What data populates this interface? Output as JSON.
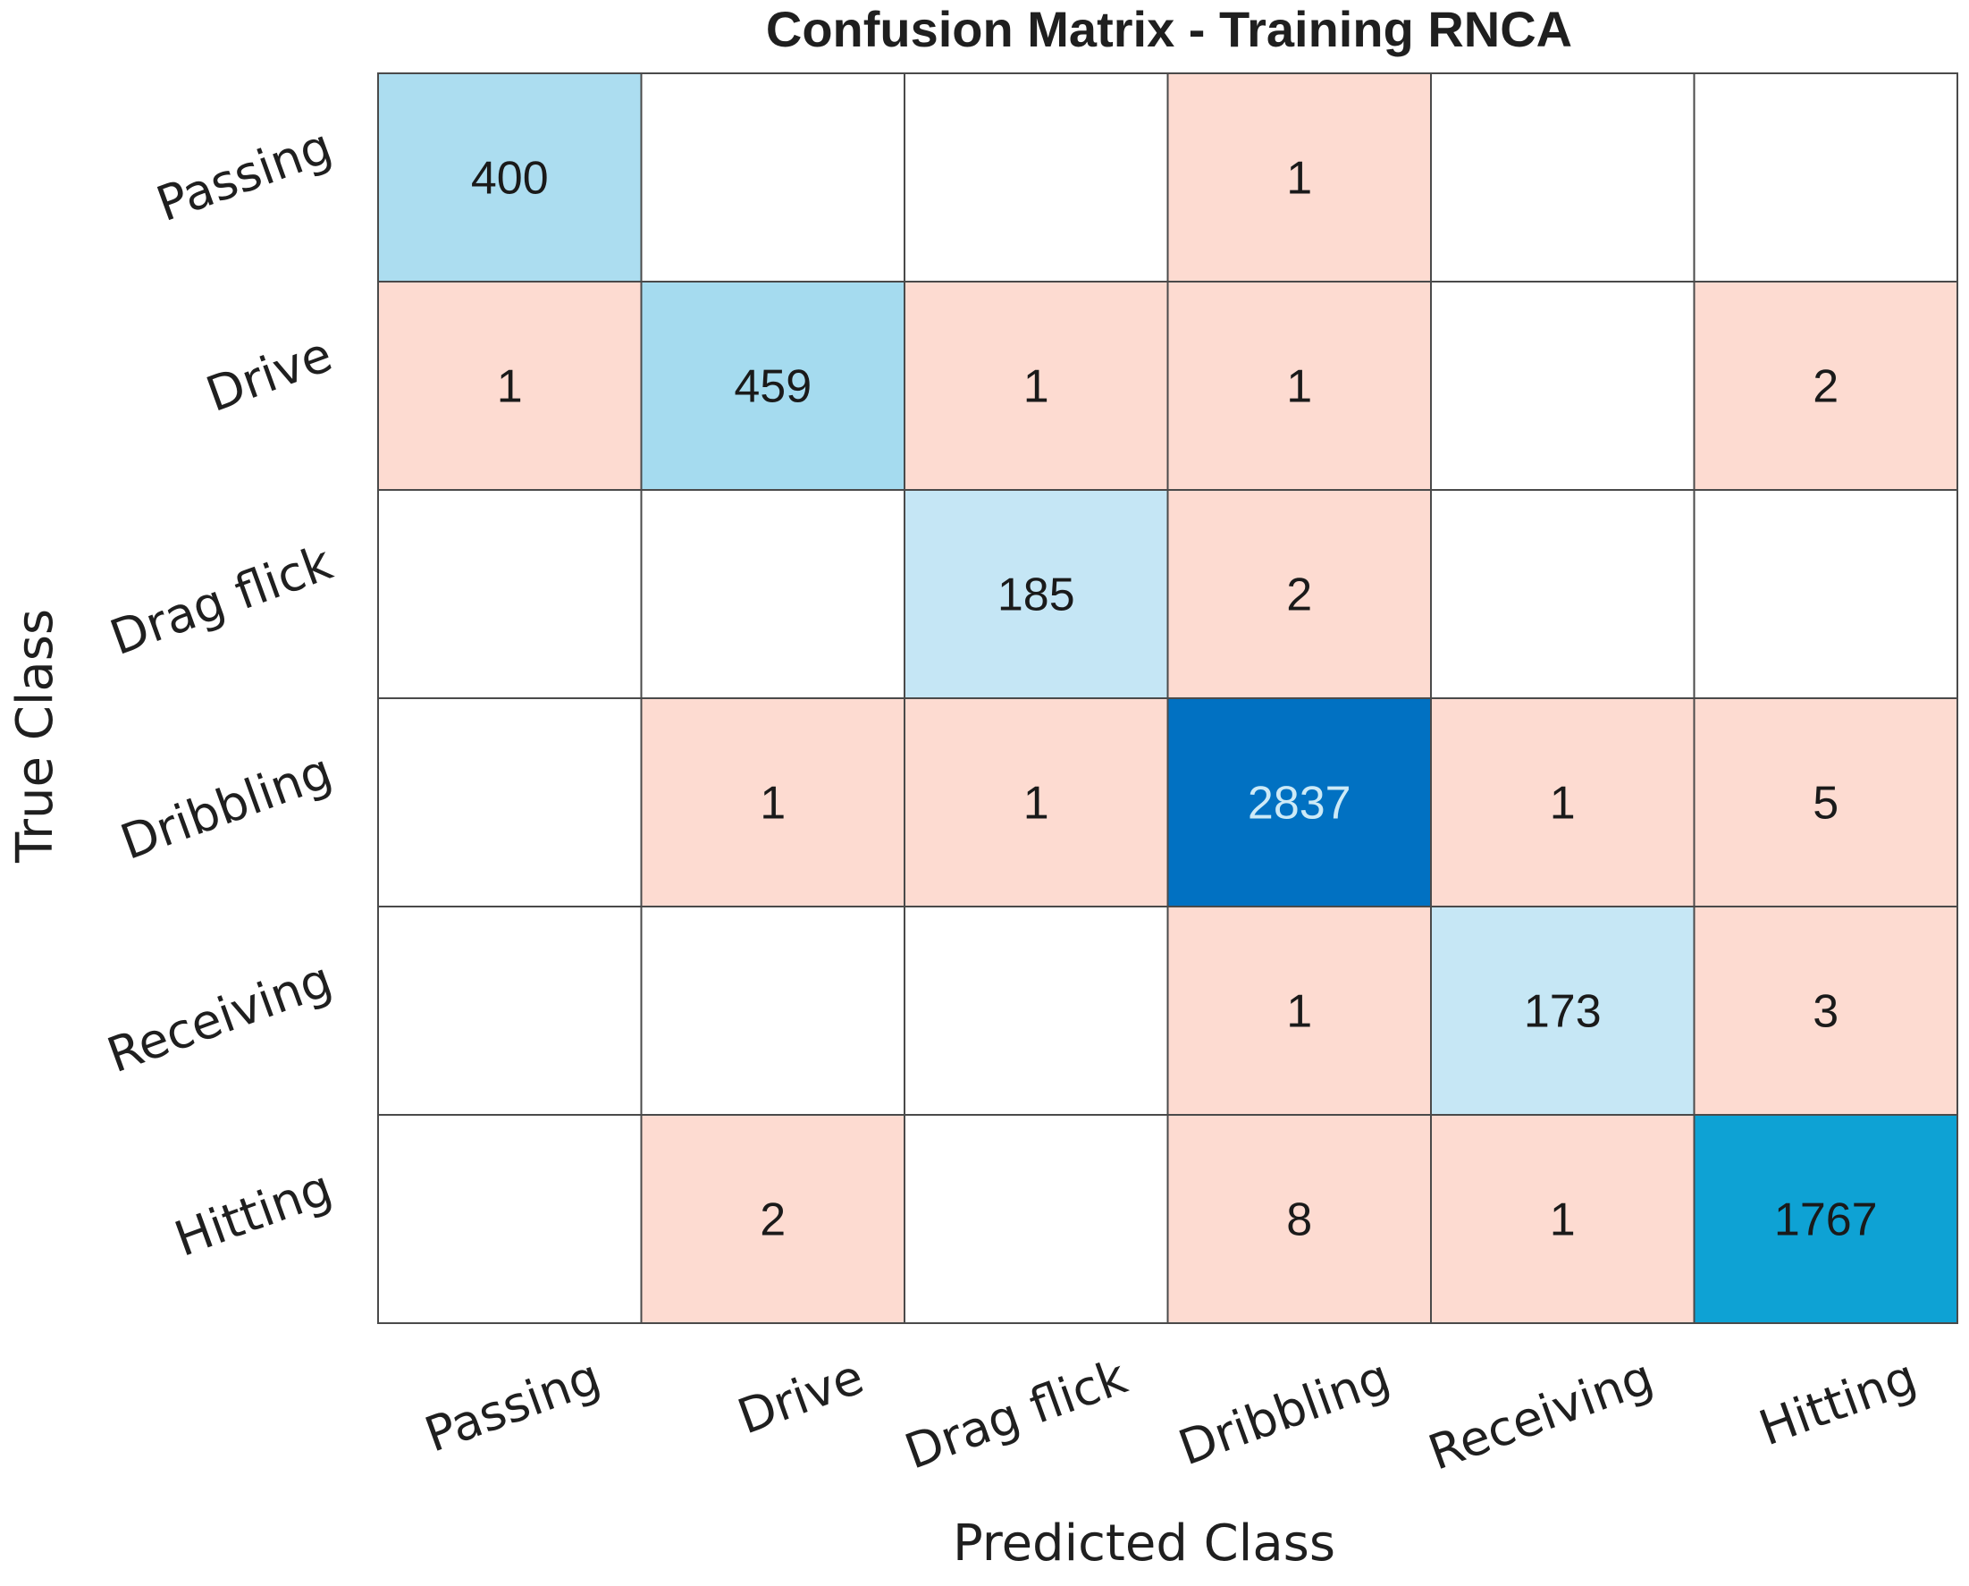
{
  "chart_data": {
    "type": "heatmap",
    "title": "Confusion Matrix - Training RNCA",
    "xlabel": "Predicted Class",
    "ylabel": "True Class",
    "classes": [
      "Passing",
      "Drive",
      "Drag flick",
      "Dribbling",
      "Receiving",
      "Hitting"
    ],
    "matrix": [
      [
        400,
        0,
        0,
        1,
        0,
        0
      ],
      [
        1,
        459,
        1,
        1,
        0,
        2
      ],
      [
        0,
        0,
        185,
        2,
        0,
        0
      ],
      [
        0,
        1,
        1,
        2837,
        1,
        5
      ],
      [
        0,
        0,
        0,
        1,
        173,
        3
      ],
      [
        0,
        2,
        0,
        8,
        1,
        1767
      ]
    ],
    "colors": {
      "off_diagonal": "#fddbd1",
      "empty": "#ffffff",
      "grid": "#4a4a4a",
      "diag_light": "#c6e7f5",
      "diag_mid": "#079fd3",
      "diag_dark": "#0171c2",
      "text_dark": "#1a1a1a",
      "text_light": "#cdeaf7"
    }
  }
}
